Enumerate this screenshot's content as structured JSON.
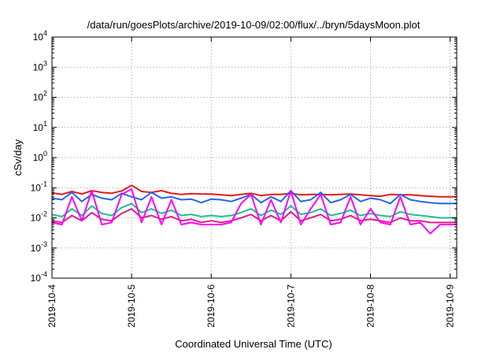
{
  "chart_data": {
    "type": "line",
    "title": "/data/run/goesPlots/archive/2019-10-09/02:00/flux/../bryn/5daysMoon.plot",
    "xlabel": "Coordinated Universal Time (UTC)",
    "ylabel": "cSv/day",
    "yscale": "log",
    "grid": true,
    "xlim": [
      "2019-10-04T00:00",
      "2019-10-09T02:00"
    ],
    "ylim": [
      0.0001,
      10000
    ],
    "x_ticks": [
      {
        "value": "2019-10-04",
        "label": "2019-10-4"
      },
      {
        "value": "2019-10-05",
        "label": "2019-10-5"
      },
      {
        "value": "2019-10-06",
        "label": "2019-10-6"
      },
      {
        "value": "2019-10-07",
        "label": "2019-10-7"
      },
      {
        "value": "2019-10-08",
        "label": "2019-10-8"
      },
      {
        "value": "2019-10-09",
        "label": "2019-10-9"
      }
    ],
    "y_ticks": [
      {
        "value": 0.0001,
        "base": "10",
        "exp": "-4"
      },
      {
        "value": 0.001,
        "base": "10",
        "exp": "-3"
      },
      {
        "value": 0.01,
        "base": "10",
        "exp": "-2"
      },
      {
        "value": 0.1,
        "base": "10",
        "exp": "-1"
      },
      {
        "value": 1,
        "base": "10",
        "exp": "0"
      },
      {
        "value": 10,
        "base": "10",
        "exp": "1"
      },
      {
        "value": 100,
        "base": "10",
        "exp": "2"
      },
      {
        "value": 1000,
        "base": "10",
        "exp": "3"
      },
      {
        "value": 10000,
        "base": "10",
        "exp": "4"
      }
    ],
    "series": [
      {
        "color": "#e41a1c",
        "x": [
          "2019-10-04T00:00",
          "2019-10-04T03:00",
          "2019-10-04T06:00",
          "2019-10-04T09:00",
          "2019-10-04T12:00",
          "2019-10-04T15:00",
          "2019-10-04T18:00",
          "2019-10-04T21:00",
          "2019-10-05T00:00",
          "2019-10-05T03:00",
          "2019-10-05T06:00",
          "2019-10-05T09:00",
          "2019-10-05T12:00",
          "2019-10-05T15:00",
          "2019-10-05T18:00",
          "2019-10-05T21:00",
          "2019-10-06T00:00",
          "2019-10-06T03:00",
          "2019-10-06T06:00",
          "2019-10-06T09:00",
          "2019-10-06T12:00",
          "2019-10-06T15:00",
          "2019-10-06T18:00",
          "2019-10-06T21:00",
          "2019-10-07T00:00",
          "2019-10-07T03:00",
          "2019-10-07T06:00",
          "2019-10-07T09:00",
          "2019-10-07T12:00",
          "2019-10-07T15:00",
          "2019-10-07T18:00",
          "2019-10-07T21:00",
          "2019-10-08T00:00",
          "2019-10-08T03:00",
          "2019-10-08T06:00",
          "2019-10-08T09:00",
          "2019-10-08T12:00",
          "2019-10-08T15:00",
          "2019-10-08T18:00",
          "2019-10-08T21:00",
          "2019-10-09T00:00",
          "2019-10-09T02:00"
        ],
        "values": [
          0.068,
          0.06,
          0.075,
          0.062,
          0.08,
          0.07,
          0.066,
          0.078,
          0.12,
          0.075,
          0.07,
          0.08,
          0.065,
          0.06,
          0.064,
          0.062,
          0.062,
          0.058,
          0.055,
          0.06,
          0.065,
          0.055,
          0.06,
          0.06,
          0.065,
          0.058,
          0.06,
          0.06,
          0.058,
          0.06,
          0.062,
          0.058,
          0.055,
          0.052,
          0.06,
          0.058,
          0.058,
          0.055,
          0.052,
          0.05,
          0.05,
          0.05
        ]
      },
      {
        "color": "#2166ee",
        "x": [
          "2019-10-04T00:00",
          "2019-10-04T03:00",
          "2019-10-04T06:00",
          "2019-10-04T09:00",
          "2019-10-04T12:00",
          "2019-10-04T15:00",
          "2019-10-04T18:00",
          "2019-10-04T21:00",
          "2019-10-05T00:00",
          "2019-10-05T03:00",
          "2019-10-05T06:00",
          "2019-10-05T09:00",
          "2019-10-05T12:00",
          "2019-10-05T15:00",
          "2019-10-05T18:00",
          "2019-10-05T21:00",
          "2019-10-06T00:00",
          "2019-10-06T03:00",
          "2019-10-06T06:00",
          "2019-10-06T09:00",
          "2019-10-06T12:00",
          "2019-10-06T15:00",
          "2019-10-06T18:00",
          "2019-10-06T21:00",
          "2019-10-07T00:00",
          "2019-10-07T03:00",
          "2019-10-07T06:00",
          "2019-10-07T09:00",
          "2019-10-07T12:00",
          "2019-10-07T15:00",
          "2019-10-07T18:00",
          "2019-10-07T21:00",
          "2019-10-08T00:00",
          "2019-10-08T03:00",
          "2019-10-08T06:00",
          "2019-10-08T09:00",
          "2019-10-08T12:00",
          "2019-10-08T15:00",
          "2019-10-08T18:00",
          "2019-10-08T21:00",
          "2019-10-09T00:00",
          "2019-10-09T02:00"
        ],
        "values": [
          0.045,
          0.04,
          0.07,
          0.035,
          0.06,
          0.045,
          0.04,
          0.065,
          0.05,
          0.04,
          0.07,
          0.045,
          0.05,
          0.04,
          0.042,
          0.032,
          0.042,
          0.04,
          0.035,
          0.045,
          0.06,
          0.032,
          0.05,
          0.035,
          0.08,
          0.035,
          0.04,
          0.07,
          0.032,
          0.04,
          0.06,
          0.035,
          0.045,
          0.04,
          0.03,
          0.06,
          0.04,
          0.035,
          0.032,
          0.03,
          0.03,
          0.03
        ]
      },
      {
        "color": "#1fbf8f",
        "x": [
          "2019-10-04T00:00",
          "2019-10-04T03:00",
          "2019-10-04T06:00",
          "2019-10-04T09:00",
          "2019-10-04T12:00",
          "2019-10-04T15:00",
          "2019-10-04T18:00",
          "2019-10-04T21:00",
          "2019-10-05T00:00",
          "2019-10-05T03:00",
          "2019-10-05T06:00",
          "2019-10-05T09:00",
          "2019-10-05T12:00",
          "2019-10-05T15:00",
          "2019-10-05T18:00",
          "2019-10-05T21:00",
          "2019-10-06T00:00",
          "2019-10-06T03:00",
          "2019-10-06T06:00",
          "2019-10-06T09:00",
          "2019-10-06T12:00",
          "2019-10-06T15:00",
          "2019-10-06T18:00",
          "2019-10-06T21:00",
          "2019-10-07T00:00",
          "2019-10-07T03:00",
          "2019-10-07T06:00",
          "2019-10-07T09:00",
          "2019-10-07T12:00",
          "2019-10-07T15:00",
          "2019-10-07T18:00",
          "2019-10-07T21:00",
          "2019-10-08T00:00",
          "2019-10-08T03:00",
          "2019-10-08T06:00",
          "2019-10-08T09:00",
          "2019-10-08T12:00",
          "2019-10-08T15:00",
          "2019-10-08T18:00",
          "2019-10-08T21:00",
          "2019-10-09T00:00",
          "2019-10-09T02:00"
        ],
        "values": [
          0.013,
          0.011,
          0.02,
          0.012,
          0.025,
          0.014,
          0.012,
          0.022,
          0.03,
          0.015,
          0.02,
          0.014,
          0.018,
          0.012,
          0.013,
          0.011,
          0.012,
          0.011,
          0.012,
          0.015,
          0.02,
          0.012,
          0.018,
          0.013,
          0.025,
          0.013,
          0.015,
          0.02,
          0.012,
          0.014,
          0.018,
          0.012,
          0.014,
          0.012,
          0.011,
          0.016,
          0.013,
          0.012,
          0.011,
          0.01,
          0.01,
          0.01
        ]
      },
      {
        "color": "#dd1f8c",
        "x": [
          "2019-10-04T00:00",
          "2019-10-04T03:00",
          "2019-10-04T06:00",
          "2019-10-04T09:00",
          "2019-10-04T12:00",
          "2019-10-04T15:00",
          "2019-10-04T18:00",
          "2019-10-04T21:00",
          "2019-10-05T00:00",
          "2019-10-05T03:00",
          "2019-10-05T06:00",
          "2019-10-05T09:00",
          "2019-10-05T12:00",
          "2019-10-05T15:00",
          "2019-10-05T18:00",
          "2019-10-05T21:00",
          "2019-10-06T00:00",
          "2019-10-06T03:00",
          "2019-10-06T06:00",
          "2019-10-06T09:00",
          "2019-10-06T12:00",
          "2019-10-06T15:00",
          "2019-10-06T18:00",
          "2019-10-06T21:00",
          "2019-10-07T00:00",
          "2019-10-07T03:00",
          "2019-10-07T06:00",
          "2019-10-07T09:00",
          "2019-10-07T12:00",
          "2019-10-07T15:00",
          "2019-10-07T18:00",
          "2019-10-07T21:00",
          "2019-10-08T00:00",
          "2019-10-08T03:00",
          "2019-10-08T06:00",
          "2019-10-08T09:00",
          "2019-10-08T12:00",
          "2019-10-08T15:00",
          "2019-10-08T18:00",
          "2019-10-08T21:00",
          "2019-10-09T00:00",
          "2019-10-09T02:00"
        ],
        "values": [
          0.008,
          0.007,
          0.012,
          0.008,
          0.015,
          0.009,
          0.008,
          0.014,
          0.02,
          0.01,
          0.012,
          0.009,
          0.011,
          0.008,
          0.009,
          0.007,
          0.008,
          0.007,
          0.008,
          0.01,
          0.013,
          0.008,
          0.012,
          0.008,
          0.016,
          0.008,
          0.01,
          0.013,
          0.008,
          0.009,
          0.012,
          0.008,
          0.009,
          0.008,
          0.007,
          0.01,
          0.008,
          0.008,
          0.007,
          0.007,
          0.007,
          0.007
        ]
      },
      {
        "color": "#ff00ff",
        "x": [
          "2019-10-04T00:00",
          "2019-10-04T03:00",
          "2019-10-04T06:00",
          "2019-10-04T09:00",
          "2019-10-04T12:00",
          "2019-10-04T15:00",
          "2019-10-04T18:00",
          "2019-10-04T21:00",
          "2019-10-05T00:00",
          "2019-10-05T03:00",
          "2019-10-05T06:00",
          "2019-10-05T09:00",
          "2019-10-05T12:00",
          "2019-10-05T15:00",
          "2019-10-05T18:00",
          "2019-10-05T21:00",
          "2019-10-06T00:00",
          "2019-10-06T03:00",
          "2019-10-06T06:00",
          "2019-10-06T09:00",
          "2019-10-06T12:00",
          "2019-10-06T15:00",
          "2019-10-06T18:00",
          "2019-10-06T21:00",
          "2019-10-07T00:00",
          "2019-10-07T03:00",
          "2019-10-07T06:00",
          "2019-10-07T09:00",
          "2019-10-07T12:00",
          "2019-10-07T15:00",
          "2019-10-07T18:00",
          "2019-10-07T21:00",
          "2019-10-08T00:00",
          "2019-10-08T03:00",
          "2019-10-08T06:00",
          "2019-10-08T09:00",
          "2019-10-08T12:00",
          "2019-10-08T15:00",
          "2019-10-08T18:00",
          "2019-10-08T21:00",
          "2019-10-09T00:00",
          "2019-10-09T02:00"
        ],
        "values": [
          0.007,
          0.006,
          0.05,
          0.008,
          0.08,
          0.006,
          0.007,
          0.06,
          0.09,
          0.007,
          0.05,
          0.006,
          0.04,
          0.006,
          0.007,
          0.006,
          0.006,
          0.006,
          0.007,
          0.03,
          0.06,
          0.006,
          0.04,
          0.007,
          0.08,
          0.006,
          0.02,
          0.06,
          0.006,
          0.007,
          0.05,
          0.006,
          0.02,
          0.007,
          0.006,
          0.05,
          0.006,
          0.007,
          0.003,
          0.006,
          0.006,
          0.006
        ]
      }
    ]
  }
}
